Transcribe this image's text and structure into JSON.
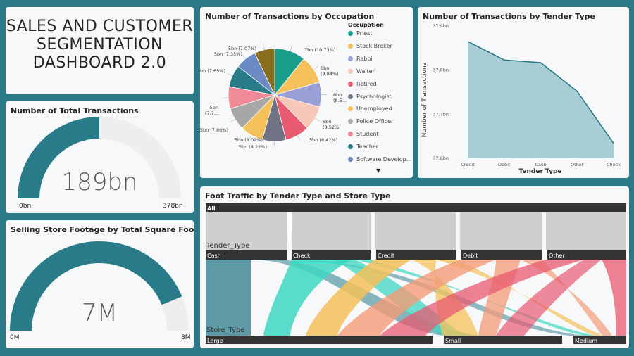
{
  "title": {
    "line1": "SALES AND CUSTOMER",
    "line2": "SEGMENTATION",
    "line3": "DASHBOARD 2.0"
  },
  "total_transactions": {
    "title": "Number of Total Transactions",
    "value": "189bn",
    "min": "0bn",
    "max": "378bn",
    "fraction": 0.5
  },
  "footage": {
    "title": "Selling Store Footage by Total Square Footage",
    "value": "7M",
    "min": "0M",
    "max": "8M",
    "fraction": 0.875
  },
  "occupation": {
    "title": "Number of Transactions by Occupation",
    "legend_title": "Occupation",
    "legend": [
      {
        "name": "Priest",
        "color": "#1a9e8c"
      },
      {
        "name": "Stock Broker",
        "color": "#f5c15a"
      },
      {
        "name": "Rabbi",
        "color": "#9aa0d6"
      },
      {
        "name": "Waiter",
        "color": "#f7c7b8"
      },
      {
        "name": "Retired",
        "color": "#e75a70"
      },
      {
        "name": "Psychologist",
        "color": "#707384"
      },
      {
        "name": "Unemployed",
        "color": "#f5c15a"
      },
      {
        "name": "Police Officer",
        "color": "#a7a7a7"
      },
      {
        "name": "Student",
        "color": "#ee8b97"
      },
      {
        "name": "Teacher",
        "color": "#2a7b89"
      },
      {
        "name": "Software Develop...",
        "color": "#6c8ac4"
      }
    ]
  },
  "tender": {
    "title": "Number of Transactions by Tender Type",
    "ylabel": "Number of Transactions",
    "xlabel": "Tender Type"
  },
  "sankey": {
    "title": "Foot Traffic by Tender Type and Store Type",
    "all_label": "All",
    "level1": "Tender_Type",
    "level2": "Store_Type",
    "tender_labels": [
      "Cash",
      "Check",
      "Credit",
      "Debit",
      "Other"
    ],
    "store_labels": [
      "Large",
      "Small",
      "Medium"
    ]
  },
  "chart_data": [
    {
      "type": "pie",
      "title": "Number of Transactions by Occupation",
      "legend_title": "Occupation",
      "slices": [
        {
          "label": "7bn (10.73%)",
          "value": 10.73,
          "color": "#1a9e8c"
        },
        {
          "label": "6bn (9.84%)",
          "value": 9.84,
          "color": "#f5c15a"
        },
        {
          "label": "6bn (8.5...",
          "value": 8.55,
          "color": "#9aa0d6"
        },
        {
          "label": "6bn (8.52%)",
          "value": 8.52,
          "color": "#f7c7b8"
        },
        {
          "label": "5bn (8.42%)",
          "value": 8.42,
          "color": "#e75a70"
        },
        {
          "label": "5bn (8.22%)",
          "value": 8.22,
          "color": "#707384"
        },
        {
          "label": "5bn (8.02%)",
          "value": 8.02,
          "color": "#f5c15a"
        },
        {
          "label": "5bn (7.86%)",
          "value": 7.86,
          "color": "#a7a7a7"
        },
        {
          "label": "5bn (7.7...",
          "value": 7.7,
          "color": "#ee8b97"
        },
        {
          "label": "5bn (7.65%)",
          "value": 7.65,
          "color": "#2a7b89"
        },
        {
          "label": "5bn (7.35%)",
          "value": 7.35,
          "color": "#6c8ac4"
        },
        {
          "label": "5bn (7.07%)",
          "value": 7.07,
          "color": "#8a6d1f"
        }
      ]
    },
    {
      "type": "area",
      "title": "Number of Transactions by Tender Type",
      "xlabel": "Tender Type",
      "ylabel": "Number of Transactions",
      "categories": [
        "Credit",
        "Debit",
        "Cash",
        "Other",
        "Check"
      ],
      "values": [
        37.865,
        37.823,
        37.817,
        37.752,
        37.634
      ],
      "yticks": [
        "37.9bn",
        "37.8bn",
        "37.7bn",
        "37.6bn"
      ],
      "ylim": [
        37.6,
        37.9
      ],
      "color": "#2a7b89"
    }
  ]
}
